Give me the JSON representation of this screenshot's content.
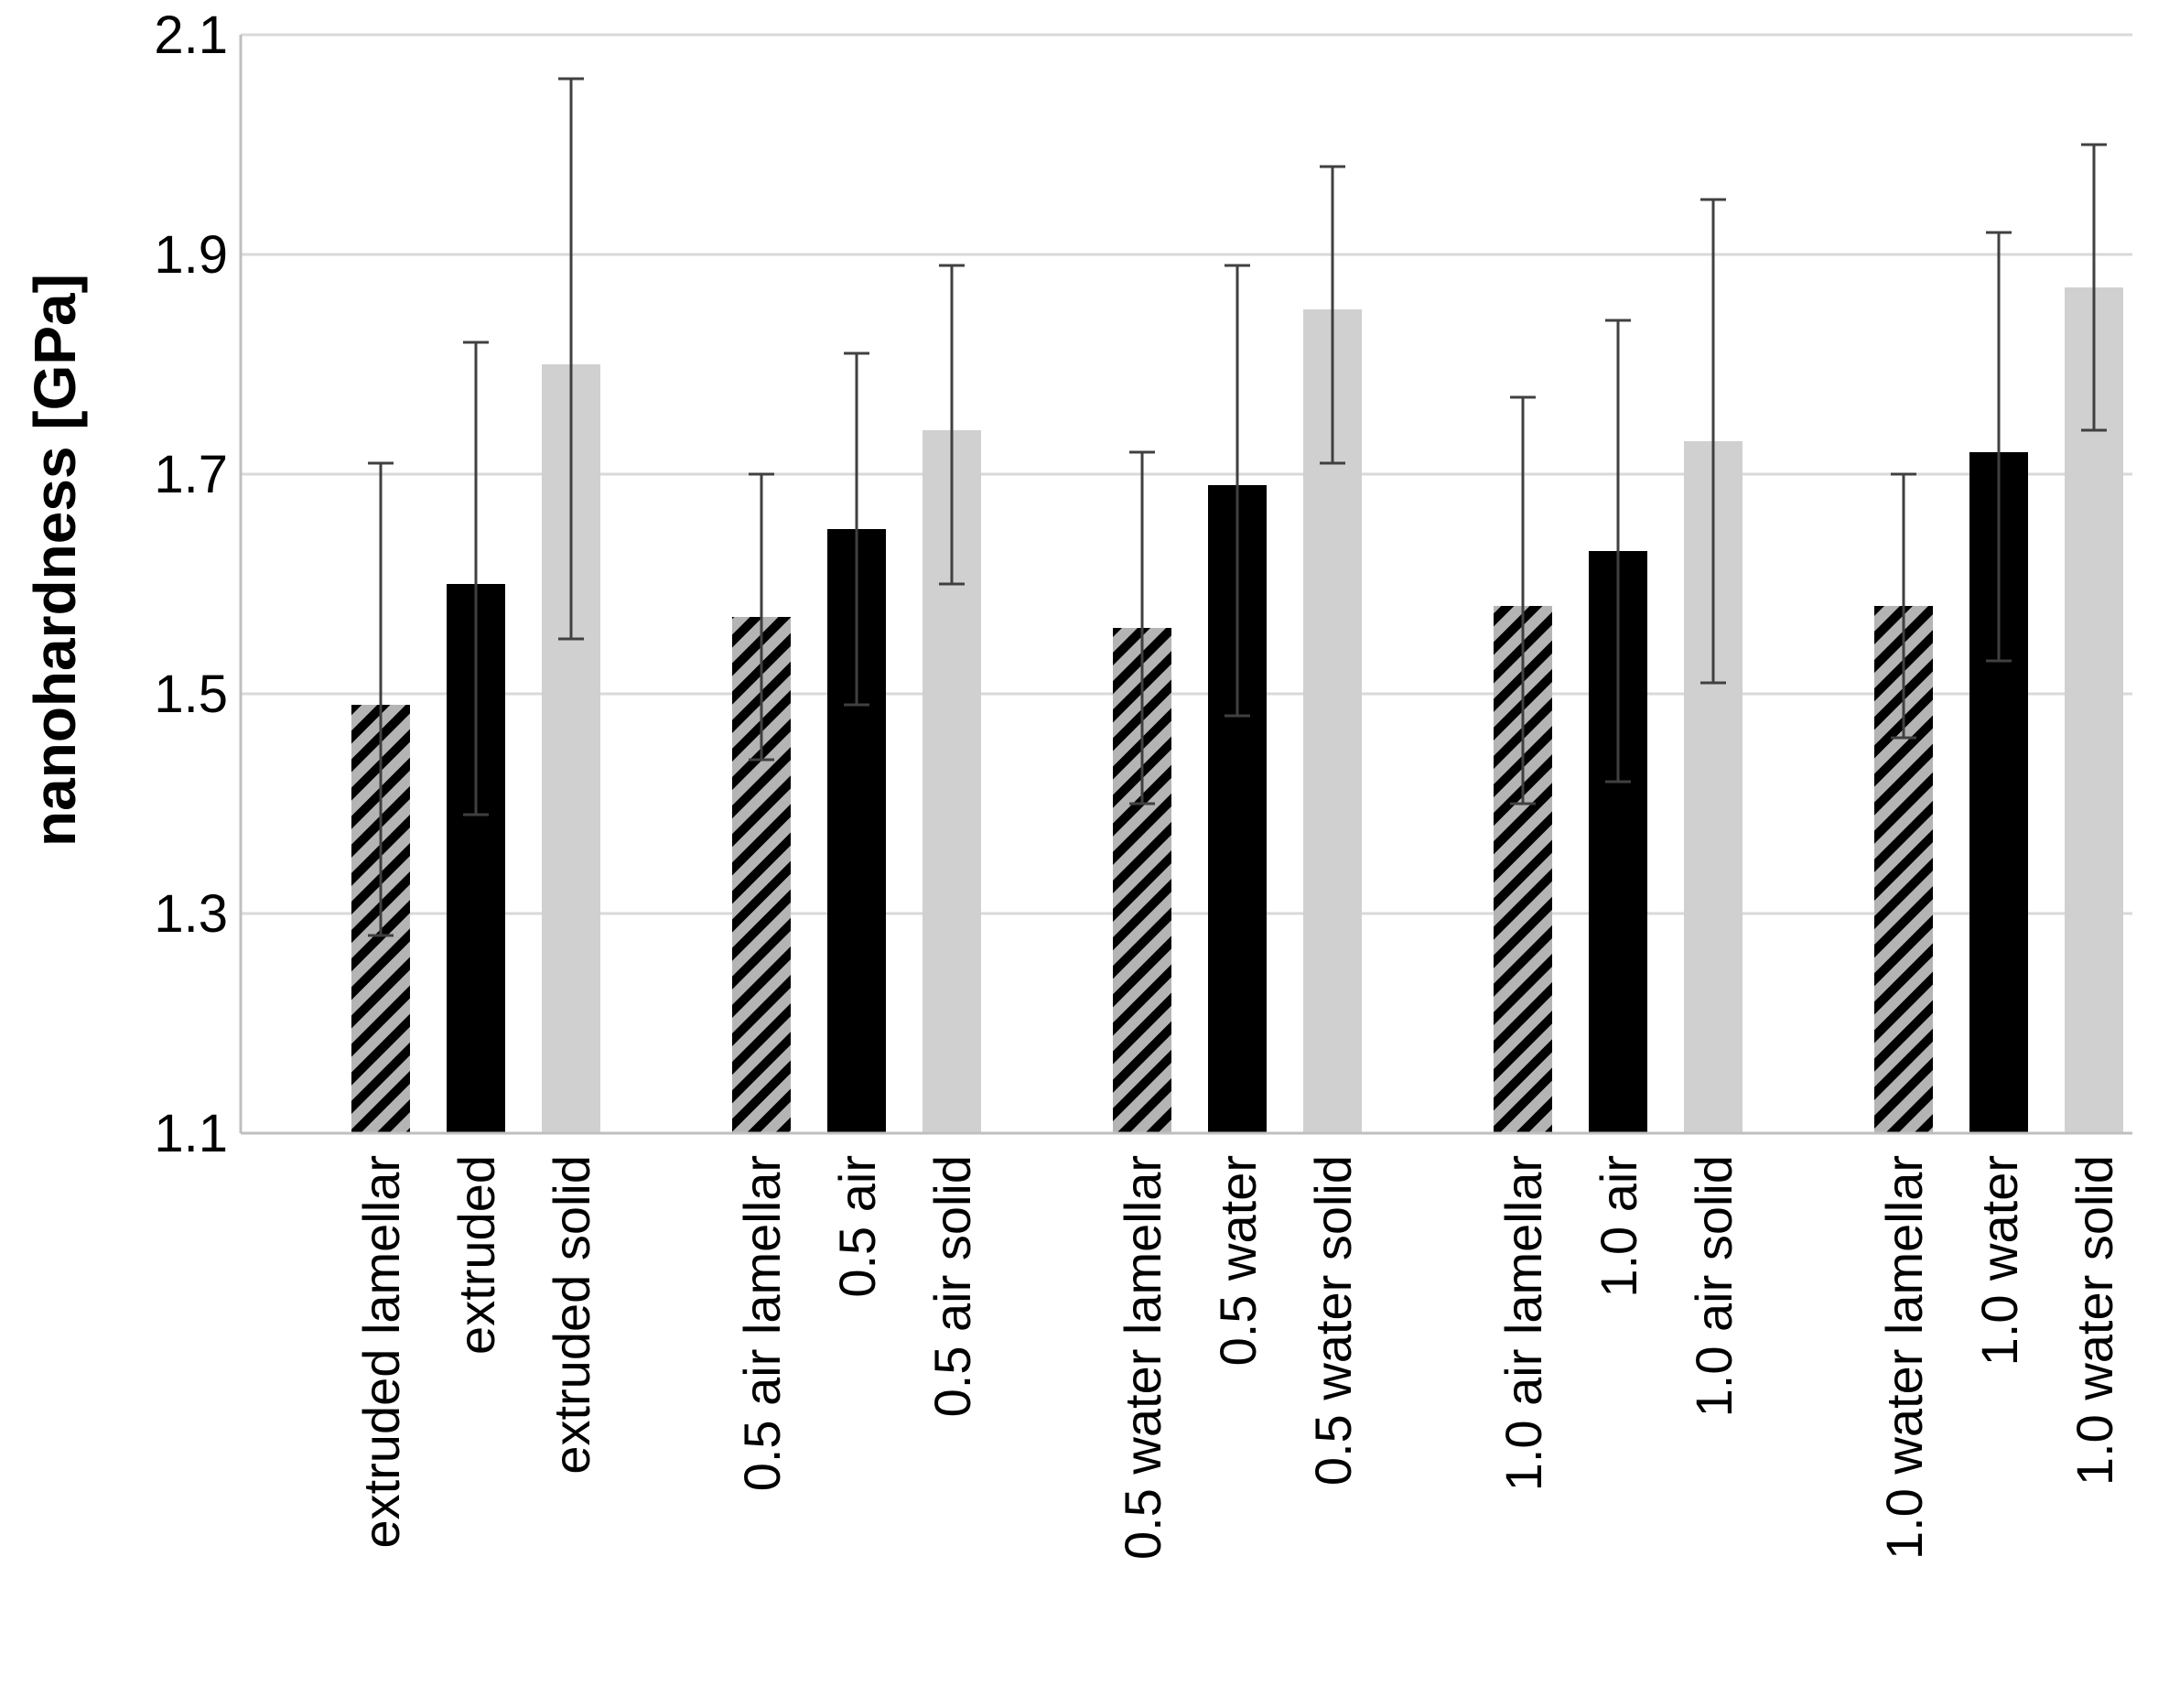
{
  "chart_data": {
    "type": "bar",
    "title": "",
    "xlabel": "",
    "ylabel": "nanohardness [GPa]",
    "ylim": [
      1.1,
      2.1
    ],
    "yticks": [
      "1.1",
      "1.3",
      "1.5",
      "1.7",
      "1.9",
      "2.1"
    ],
    "grid": true,
    "groups": [
      {
        "bars": [
          {
            "label": "extruded lamellar",
            "value": 1.49,
            "err_low": 1.28,
            "err_high": 1.71,
            "style": "hatched"
          },
          {
            "label": "extruded",
            "value": 1.6,
            "err_low": 1.39,
            "err_high": 1.82,
            "style": "black"
          },
          {
            "label": "extruded solid",
            "value": 1.8,
            "err_low": 1.55,
            "err_high": 2.06,
            "style": "gray"
          }
        ]
      },
      {
        "bars": [
          {
            "label": "0.5 air lamellar",
            "value": 1.57,
            "err_low": 1.44,
            "err_high": 1.7,
            "style": "hatched"
          },
          {
            "label": "0.5 air",
            "value": 1.65,
            "err_low": 1.49,
            "err_high": 1.81,
            "style": "black"
          },
          {
            "label": "0.5 air solid",
            "value": 1.74,
            "err_low": 1.6,
            "err_high": 1.89,
            "style": "gray"
          }
        ]
      },
      {
        "bars": [
          {
            "label": "0.5 water lamellar",
            "value": 1.56,
            "err_low": 1.4,
            "err_high": 1.72,
            "style": "hatched"
          },
          {
            "label": "0.5 water",
            "value": 1.69,
            "err_low": 1.48,
            "err_high": 1.89,
            "style": "black"
          },
          {
            "label": "0.5 water solid",
            "value": 1.85,
            "err_low": 1.71,
            "err_high": 1.98,
            "style": "gray"
          }
        ]
      },
      {
        "bars": [
          {
            "label": "1.0 air lamellar",
            "value": 1.58,
            "err_low": 1.4,
            "err_high": 1.77,
            "style": "hatched"
          },
          {
            "label": "1.0 air",
            "value": 1.63,
            "err_low": 1.42,
            "err_high": 1.84,
            "style": "black"
          },
          {
            "label": "1.0 air solid",
            "value": 1.73,
            "err_low": 1.51,
            "err_high": 1.95,
            "style": "gray"
          }
        ]
      },
      {
        "bars": [
          {
            "label": "1.0 water lamellar",
            "value": 1.58,
            "err_low": 1.46,
            "err_high": 1.7,
            "style": "hatched"
          },
          {
            "label": "1.0 water",
            "value": 1.72,
            "err_low": 1.53,
            "err_high": 1.92,
            "style": "black"
          },
          {
            "label": "1.0 water solid",
            "value": 1.87,
            "err_low": 1.74,
            "err_high": 2.0,
            "style": "gray"
          }
        ]
      }
    ],
    "colors": {
      "black": "#000000",
      "gray": "#d0d0d0",
      "hatch_background": "#b4b4b4",
      "hatch_stripe": "#000000",
      "grid": "#d9d9d9",
      "axis": "#bfbfbf",
      "error_bar": "#404040"
    }
  }
}
